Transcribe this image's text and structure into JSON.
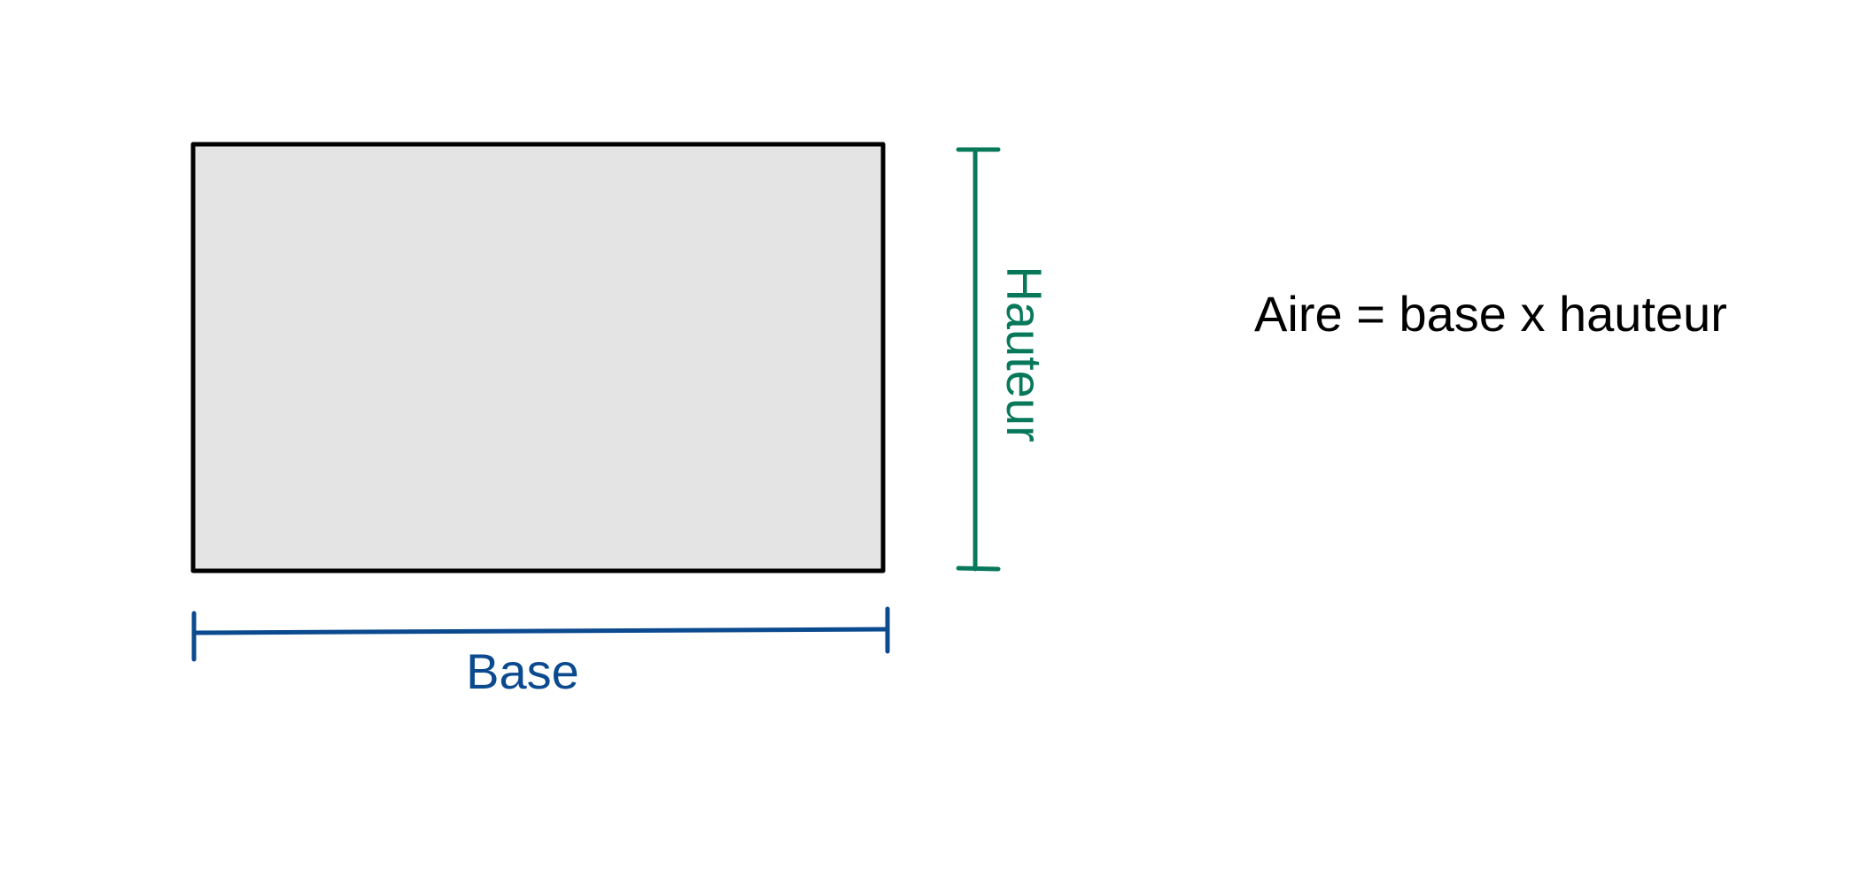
{
  "diagram": {
    "base_label": "Base",
    "height_label": "Hauteur",
    "formula": "Aire = base x hauteur"
  },
  "colors": {
    "rectangle_fill": "#e4e4e4",
    "rectangle_stroke": "#000000",
    "base_color": "#0b4a8f",
    "height_color": "#08785a",
    "formula_color": "#000000"
  }
}
